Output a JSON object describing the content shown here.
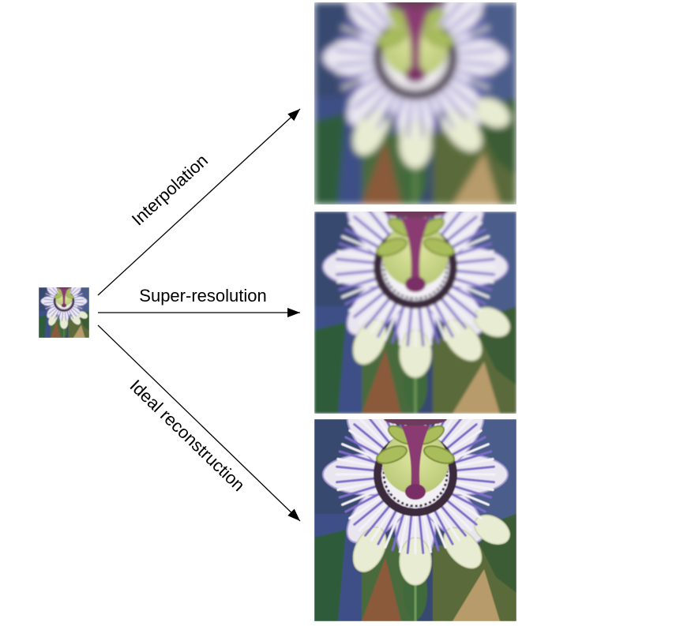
{
  "labels": {
    "interpolation": "Interpolation",
    "super_resolution": "Super-resolution",
    "ideal": "Ideal reconstruction"
  },
  "colors": {
    "arrow": "#000000",
    "petal_light": "#e9e6ef",
    "petal_purple": "#7c6cc8",
    "corona_dark": "#3a2a3a",
    "corona_white": "#f2f0f4",
    "center_green": "#cfd98a",
    "style_purple": "#8a3a72",
    "sepal_cream": "#e8ecd2",
    "leaf_green": "#3f6a3a",
    "background_blue": "#3c4f86",
    "background_green": "#4a6a3e",
    "background_brown": "#8a5a3a"
  },
  "images": [
    {
      "name": "small-input",
      "content": "passion-flower"
    },
    {
      "name": "interpolation-output",
      "content": "passion-flower",
      "sharpness": "blurry"
    },
    {
      "name": "super-resolution-output",
      "content": "passion-flower",
      "sharpness": "medium"
    },
    {
      "name": "ideal-output",
      "content": "passion-flower",
      "sharpness": "sharp"
    }
  ]
}
